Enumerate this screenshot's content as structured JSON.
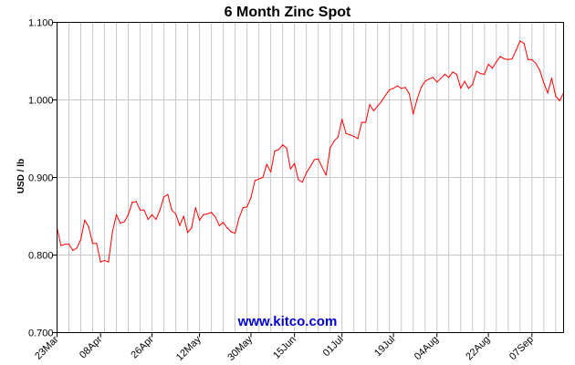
{
  "chart_data": {
    "type": "line",
    "title": "6 Month Zinc Spot",
    "ylabel": "USD / lb",
    "xlabel": "",
    "ylim": [
      0.7,
      1.1
    ],
    "yticks": [
      "0.700",
      "0.800",
      "0.900",
      "1.000",
      "1.100"
    ],
    "ytick_values": [
      0.7,
      0.8,
      0.9,
      1.0,
      1.1
    ],
    "xticks": [
      "23Mar",
      "08Apr",
      "26Apr",
      "12May",
      "30May",
      "15Jun",
      "01Jul",
      "19Jul",
      "04Aug",
      "22Aug",
      "07Sep"
    ],
    "xtick_index": [
      0,
      11,
      24,
      36,
      49,
      60,
      72,
      85,
      96,
      109,
      120
    ],
    "grid": true,
    "line_color": "#ff0000",
    "series": [
      {
        "values": [
          0.835,
          0.812,
          0.814,
          0.814,
          0.806,
          0.809,
          0.82,
          0.845,
          0.836,
          0.815,
          0.815,
          0.791,
          0.793,
          0.791,
          0.83,
          0.852,
          0.841,
          0.843,
          0.852,
          0.868,
          0.869,
          0.858,
          0.858,
          0.846,
          0.852,
          0.846,
          0.858,
          0.875,
          0.878,
          0.858,
          0.853,
          0.838,
          0.85,
          0.829,
          0.835,
          0.861,
          0.845,
          0.852,
          0.853,
          0.855,
          0.849,
          0.838,
          0.842,
          0.835,
          0.83,
          0.828,
          0.848,
          0.861,
          0.862,
          0.874,
          0.896,
          0.898,
          0.9,
          0.917,
          0.907,
          0.934,
          0.936,
          0.942,
          0.938,
          0.911,
          0.918,
          0.897,
          0.894,
          0.906,
          0.914,
          0.923,
          0.924,
          0.913,
          0.903,
          0.938,
          0.947,
          0.952,
          0.975,
          0.957,
          0.955,
          0.953,
          0.95,
          0.971,
          0.971,
          0.994,
          0.986,
          0.992,
          0.998,
          1.006,
          1.013,
          1.015,
          1.018,
          1.015,
          1.016,
          1.008,
          0.982,
          1.001,
          1.016,
          1.024,
          1.027,
          1.029,
          1.023,
          1.028,
          1.033,
          1.029,
          1.036,
          1.033,
          1.015,
          1.024,
          1.015,
          1.02,
          1.037,
          1.034,
          1.033,
          1.046,
          1.041,
          1.049,
          1.056,
          1.053,
          1.052,
          1.053,
          1.064,
          1.076,
          1.073,
          1.052,
          1.052,
          1.047,
          1.038,
          1.022,
          1.009,
          1.028,
          1.005,
          0.999,
          1.009
        ]
      }
    ]
  },
  "watermark": "www.kitco.com"
}
